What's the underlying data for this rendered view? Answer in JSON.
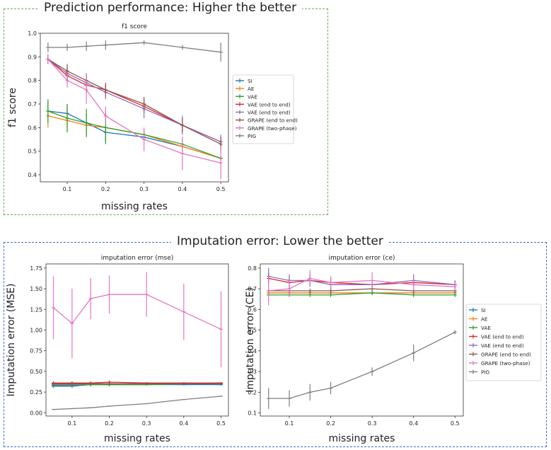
{
  "panels": {
    "top_title": "Prediction performance: Higher the better",
    "bottom_title": "Imputation error: Lower the better"
  },
  "legend_labels": [
    "SI",
    "AE",
    "VAE",
    "VAE (end to end)",
    "VAE (end to end)",
    "GRAPE (end to end)",
    "GRAPE (two-phase)",
    "PIG"
  ],
  "colors": [
    "#1f77b4",
    "#ff7f0e",
    "#2ca02c",
    "#d62728",
    "#9467bd",
    "#8c564b",
    "#e377c2",
    "#7f7f7f"
  ],
  "chart_data": [
    {
      "type": "line",
      "title": "f1 score",
      "xlabel": "missing rates",
      "ylabel": "f1 score",
      "x": [
        0.05,
        0.1,
        0.15,
        0.2,
        0.3,
        0.4,
        0.5
      ],
      "xticks": [
        "0.1",
        "0.2",
        "0.3",
        "0.4",
        "0.5"
      ],
      "yticks": [
        "0.4",
        "0.5",
        "0.6",
        "0.7",
        "0.8",
        "0.9",
        "1.0"
      ],
      "ylim": [
        0.37,
        1.0
      ],
      "grid": false,
      "legend": "right",
      "series": [
        {
          "name": "SI",
          "values": [
            0.67,
            0.66,
            0.62,
            0.58,
            0.56,
            0.52,
            0.47
          ],
          "errors": [
            0.04,
            0.04,
            0.04,
            0.04,
            0.02,
            0.02,
            0.01
          ]
        },
        {
          "name": "AE",
          "values": [
            0.65,
            0.63,
            0.61,
            0.6,
            0.57,
            0.52,
            0.47
          ],
          "errors": [
            0.05,
            0.05,
            0.05,
            0.03,
            0.02,
            0.02,
            0.01
          ]
        },
        {
          "name": "VAE",
          "values": [
            0.67,
            0.64,
            0.62,
            0.6,
            0.57,
            0.53,
            0.47
          ],
          "errors": [
            0.05,
            0.06,
            0.06,
            0.07,
            0.02,
            0.02,
            0.01
          ]
        },
        {
          "name": "VAE (end to end)",
          "values": [
            0.89,
            0.82,
            0.78,
            0.76,
            0.69,
            0.61,
            0.54
          ],
          "errors": [
            0.02,
            0.03,
            0.04,
            0.03,
            0.03,
            0.03,
            0.02
          ]
        },
        {
          "name": "VAE (end to end)",
          "values": [
            0.89,
            0.83,
            0.79,
            0.75,
            0.68,
            0.61,
            0.54
          ],
          "errors": [
            0.02,
            0.03,
            0.04,
            0.03,
            0.04,
            0.04,
            0.03
          ]
        },
        {
          "name": "GRAPE (end to end)",
          "values": [
            0.89,
            0.84,
            0.8,
            0.76,
            0.7,
            0.61,
            0.53
          ],
          "errors": [
            0.02,
            0.03,
            0.02,
            0.02,
            0.03,
            0.03,
            0.03
          ]
        },
        {
          "name": "GRAPE (two-phase)",
          "values": [
            0.89,
            0.8,
            0.76,
            0.65,
            0.55,
            0.49,
            0.45
          ],
          "errors": [
            0.02,
            0.03,
            0.06,
            0.04,
            0.05,
            0.07,
            0.07
          ]
        },
        {
          "name": "PIG",
          "values": [
            0.94,
            0.94,
            0.945,
            0.95,
            0.96,
            0.94,
            0.92
          ],
          "errors": [
            0.02,
            0.015,
            0.02,
            0.02,
            0.01,
            0.01,
            0.04
          ]
        }
      ]
    },
    {
      "type": "line",
      "title": "imputation error (mse)",
      "xlabel": "missing rates",
      "ylabel": "Imputation error (MSE)",
      "x": [
        0.05,
        0.1,
        0.15,
        0.2,
        0.3,
        0.4,
        0.5
      ],
      "xticks": [
        "0.1",
        "0.2",
        "0.3",
        "0.4",
        "0.5"
      ],
      "yticks": [
        "0.00",
        "0.25",
        "0.50",
        "0.75",
        "1.00",
        "1.25",
        "1.50",
        "1.75"
      ],
      "ylim": [
        -0.04,
        1.8
      ],
      "grid": false,
      "series": [
        {
          "name": "SI",
          "values": [
            0.32,
            0.32,
            0.34,
            0.34,
            0.34,
            0.34,
            0.34
          ],
          "errors": [
            0.02,
            0.02,
            0.02,
            0.02,
            0.01,
            0.01,
            0.01
          ]
        },
        {
          "name": "AE",
          "values": [
            0.35,
            0.35,
            0.35,
            0.35,
            0.34,
            0.35,
            0.36
          ],
          "errors": [
            0.02,
            0.02,
            0.02,
            0.02,
            0.01,
            0.01,
            0.01
          ]
        },
        {
          "name": "VAE",
          "values": [
            0.33,
            0.33,
            0.34,
            0.34,
            0.34,
            0.35,
            0.35
          ],
          "errors": [
            0.02,
            0.02,
            0.02,
            0.02,
            0.01,
            0.01,
            0.01
          ]
        },
        {
          "name": "VAE (end to end)",
          "values": [
            0.36,
            0.36,
            0.36,
            0.37,
            0.36,
            0.36,
            0.36
          ],
          "errors": [
            0.02,
            0.02,
            0.02,
            0.02,
            0.01,
            0.01,
            0.01
          ]
        },
        {
          "name": "VAE (end to end)",
          "values": [
            0.34,
            0.34,
            0.35,
            0.35,
            0.35,
            0.35,
            0.35
          ],
          "errors": [
            0.02,
            0.02,
            0.02,
            0.02,
            0.01,
            0.01,
            0.01
          ]
        },
        {
          "name": "GRAPE (end to end)",
          "values": [
            0.35,
            0.35,
            0.35,
            0.35,
            0.35,
            0.35,
            0.35
          ],
          "errors": [
            0.02,
            0.02,
            0.02,
            0.02,
            0.01,
            0.01,
            0.01
          ]
        },
        {
          "name": "GRAPE (two-phase)",
          "values": [
            1.27,
            1.08,
            1.38,
            1.43,
            1.43,
            1.22,
            1.01
          ],
          "errors": [
            0.38,
            0.42,
            0.25,
            0.23,
            0.27,
            0.34,
            0.46
          ]
        },
        {
          "name": "PIG",
          "values": [
            0.04,
            0.05,
            0.06,
            0.08,
            0.11,
            0.16,
            0.2
          ],
          "errors": [
            0.0,
            0.0,
            0.0,
            0.0,
            0.0,
            0.0,
            0.0
          ]
        }
      ]
    },
    {
      "type": "line",
      "title": "imputation error (ce)",
      "xlabel": "missing rates",
      "ylabel": "Imputation error (CE)",
      "x": [
        0.05,
        0.1,
        0.15,
        0.2,
        0.3,
        0.4,
        0.5
      ],
      "xticks": [
        "0.1",
        "0.2",
        "0.3",
        "0.4",
        "0.5"
      ],
      "yticks": [
        "0.1",
        "0.2",
        "0.3",
        "0.4",
        "0.5",
        "0.6",
        "0.7",
        "0.8"
      ],
      "ylim": [
        0.085,
        0.82
      ],
      "grid": false,
      "legend": "right",
      "series": [
        {
          "name": "SI",
          "values": [
            0.68,
            0.68,
            0.68,
            0.68,
            0.68,
            0.68,
            0.68
          ],
          "errors": [
            0.01,
            0.01,
            0.01,
            0.01,
            0.01,
            0.01,
            0.01
          ]
        },
        {
          "name": "AE",
          "values": [
            0.68,
            0.68,
            0.68,
            0.68,
            0.68,
            0.68,
            0.68
          ],
          "errors": [
            0.01,
            0.01,
            0.01,
            0.01,
            0.01,
            0.01,
            0.01
          ]
        },
        {
          "name": "VAE",
          "values": [
            0.67,
            0.67,
            0.67,
            0.67,
            0.68,
            0.67,
            0.67
          ],
          "errors": [
            0.01,
            0.01,
            0.01,
            0.01,
            0.01,
            0.01,
            0.01
          ]
        },
        {
          "name": "VAE (end to end)",
          "values": [
            0.75,
            0.73,
            0.74,
            0.73,
            0.72,
            0.73,
            0.72
          ],
          "errors": [
            0.03,
            0.03,
            0.03,
            0.03,
            0.02,
            0.02,
            0.02
          ]
        },
        {
          "name": "VAE (end to end)",
          "values": [
            0.76,
            0.74,
            0.74,
            0.72,
            0.72,
            0.74,
            0.72
          ],
          "errors": [
            0.04,
            0.03,
            0.03,
            0.03,
            0.02,
            0.03,
            0.02
          ]
        },
        {
          "name": "GRAPE (end to end)",
          "values": [
            0.69,
            0.69,
            0.69,
            0.69,
            0.7,
            0.69,
            0.69
          ],
          "errors": [
            0.01,
            0.01,
            0.01,
            0.01,
            0.01,
            0.01,
            0.01
          ]
        },
        {
          "name": "GRAPE (two-phase)",
          "values": [
            0.69,
            0.7,
            0.75,
            0.73,
            0.74,
            0.72,
            0.71
          ],
          "errors": [
            0.07,
            0.04,
            0.04,
            0.03,
            0.04,
            0.03,
            0.02
          ]
        },
        {
          "name": "PIG",
          "values": [
            0.17,
            0.17,
            0.2,
            0.22,
            0.3,
            0.39,
            0.49
          ],
          "errors": [
            0.05,
            0.04,
            0.04,
            0.03,
            0.02,
            0.04,
            0.01
          ]
        }
      ]
    }
  ]
}
